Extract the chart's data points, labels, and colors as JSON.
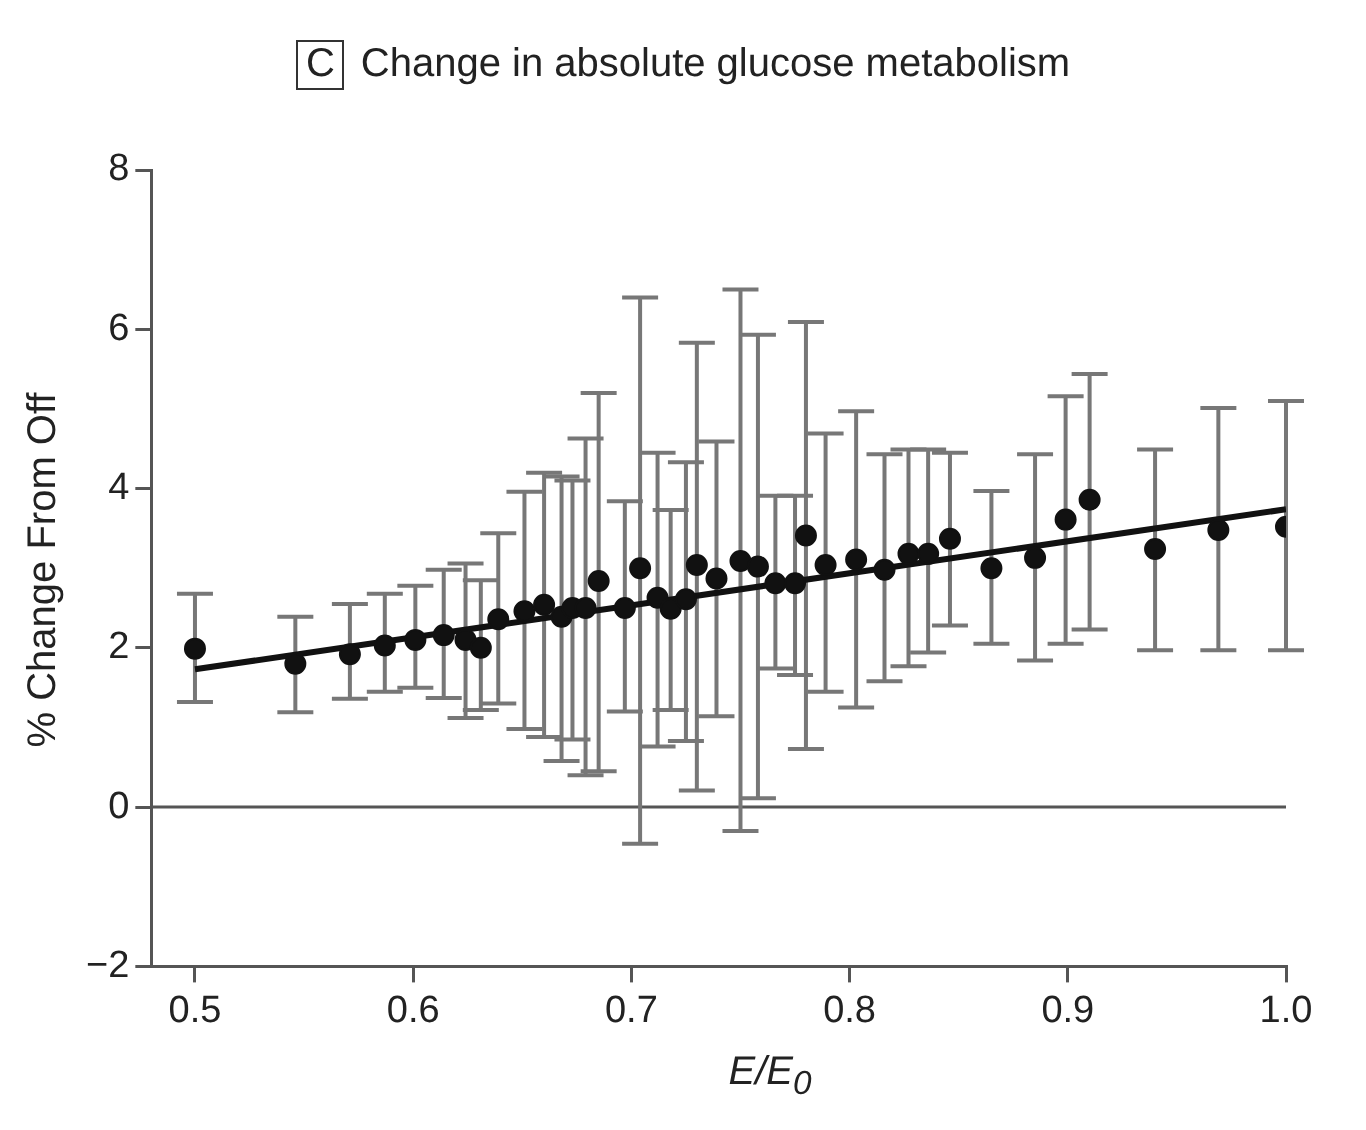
{
  "chart_data": {
    "type": "scatter",
    "title": "Change in absolute glucose metabolism",
    "annotations": [
      "C"
    ],
    "xlabel": "E/E$_{0}$",
    "ylabel": "% Change From Off",
    "xlim": [
      0.48,
      1.0
    ],
    "xticks": [
      0.5,
      0.6,
      0.7,
      0.8,
      0.9,
      {
        "value": 1.0,
        "label": "1.0"
      }
    ],
    "ylim": [
      -2,
      8
    ],
    "yticks": [
      {
        "value": -2,
        "label": "−2"
      },
      0,
      2,
      4,
      6,
      8
    ],
    "grid": false,
    "legend": false,
    "marker": "circle",
    "ref_lines": [
      {
        "axis": "y",
        "value": 0,
        "color": "#555555"
      }
    ],
    "series": [
      {
        "color": "#111111",
        "x": [
          0.5,
          0.546,
          0.571,
          0.587,
          0.601,
          0.614,
          0.624,
          0.631,
          0.639,
          0.651,
          0.66,
          0.668,
          0.673,
          0.679,
          0.685,
          0.697,
          0.704,
          0.712,
          0.718,
          0.725,
          0.73,
          0.739,
          0.75,
          0.758,
          0.766,
          0.775,
          0.78,
          0.789,
          0.803,
          0.816,
          0.827,
          0.836,
          0.846,
          0.865,
          0.885,
          0.899,
          0.91,
          0.94,
          0.969,
          1.0
        ],
        "values": [
          1.99,
          1.8,
          1.92,
          2.03,
          2.1,
          2.16,
          2.1,
          2.0,
          2.36,
          2.46,
          2.54,
          2.39,
          2.5,
          2.5,
          2.84,
          2.5,
          3.0,
          2.63,
          2.49,
          2.61,
          3.04,
          2.87,
          3.09,
          3.02,
          2.81,
          2.81,
          3.41,
          3.04,
          3.11,
          2.98,
          3.18,
          3.18,
          3.37,
          3.0,
          3.13,
          3.61,
          3.86,
          3.24,
          3.48,
          3.52
        ],
        "errors": [
          [
            1.32,
            2.68
          ],
          [
            1.19,
            2.39
          ],
          [
            1.36,
            2.55
          ],
          [
            1.45,
            2.68
          ],
          [
            1.5,
            2.78
          ],
          [
            1.37,
            2.98
          ],
          [
            1.12,
            3.06
          ],
          [
            1.22,
            2.85
          ],
          [
            1.3,
            3.44
          ],
          [
            0.98,
            3.96
          ],
          [
            0.88,
            4.2
          ],
          [
            0.58,
            4.15
          ],
          [
            0.85,
            4.1
          ],
          [
            0.4,
            4.63
          ],
          [
            0.45,
            5.2
          ],
          [
            1.2,
            3.84
          ],
          [
            -0.46,
            6.4
          ],
          [
            0.76,
            4.45
          ],
          [
            1.22,
            3.73
          ],
          [
            0.83,
            4.33
          ],
          [
            0.21,
            5.83
          ],
          [
            1.14,
            4.59
          ],
          [
            -0.3,
            6.5
          ],
          [
            0.11,
            5.93
          ],
          [
            1.74,
            3.91
          ],
          [
            1.66,
            3.91
          ],
          [
            0.73,
            6.09
          ],
          [
            1.45,
            4.69
          ],
          [
            1.25,
            4.97
          ],
          [
            1.58,
            4.43
          ],
          [
            1.77,
            4.49
          ],
          [
            1.94,
            4.49
          ],
          [
            2.28,
            4.45
          ],
          [
            2.05,
            3.97
          ],
          [
            1.84,
            4.43
          ],
          [
            2.05,
            5.16
          ],
          [
            2.23,
            5.44
          ],
          [
            1.97,
            4.49
          ],
          [
            1.97,
            5.01
          ],
          [
            1.97,
            5.1
          ]
        ]
      },
      {
        "type": "line",
        "color": "#111111",
        "marker": "none",
        "x": [
          0.5,
          1.0
        ],
        "values": [
          1.73,
          3.74
        ]
      }
    ]
  }
}
